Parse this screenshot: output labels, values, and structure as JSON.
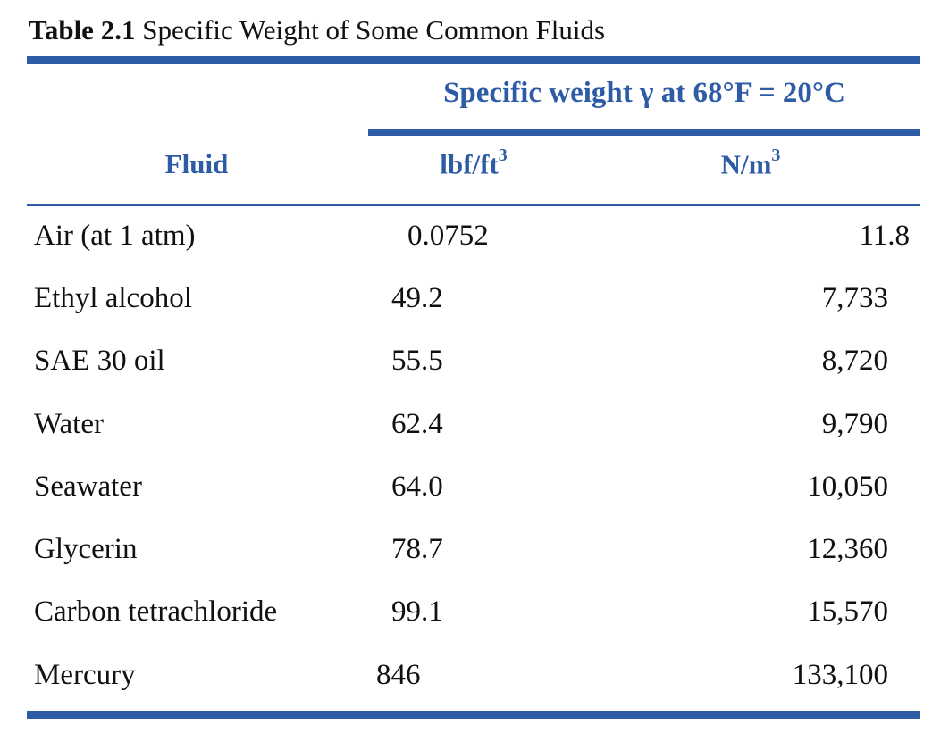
{
  "caption": {
    "number": "Table 2.1",
    "title": "Specific Weight of Some Common Fluids"
  },
  "header": {
    "span_label": "Specific weight γ at 68°F = 20°C",
    "fluid_label": "Fluid",
    "unit_lbf": "lbf/ft",
    "unit_lbf_exp": "3",
    "unit_nm": "N/m",
    "unit_nm_exp": "3"
  },
  "rows": [
    {
      "fluid": "Air (at 1 atm)",
      "lbf": "0.0752",
      "nm": "11.8"
    },
    {
      "fluid": "Ethyl alcohol",
      "lbf": "49.2",
      "nm": "7,733"
    },
    {
      "fluid": "SAE 30 oil",
      "lbf": "55.5",
      "nm": "8,720"
    },
    {
      "fluid": "Water",
      "lbf": "62.4",
      "nm": "9,790"
    },
    {
      "fluid": "Seawater",
      "lbf": "64.0",
      "nm": "10,050"
    },
    {
      "fluid": "Glycerin",
      "lbf": "78.7",
      "nm": "12,360"
    },
    {
      "fluid": "Carbon tetrachloride",
      "lbf": "99.1",
      "nm": "15,570"
    },
    {
      "fluid": "Mercury",
      "lbf": "846",
      "nm": "133,100"
    }
  ],
  "colors": {
    "accent": "#2d5ba6"
  }
}
